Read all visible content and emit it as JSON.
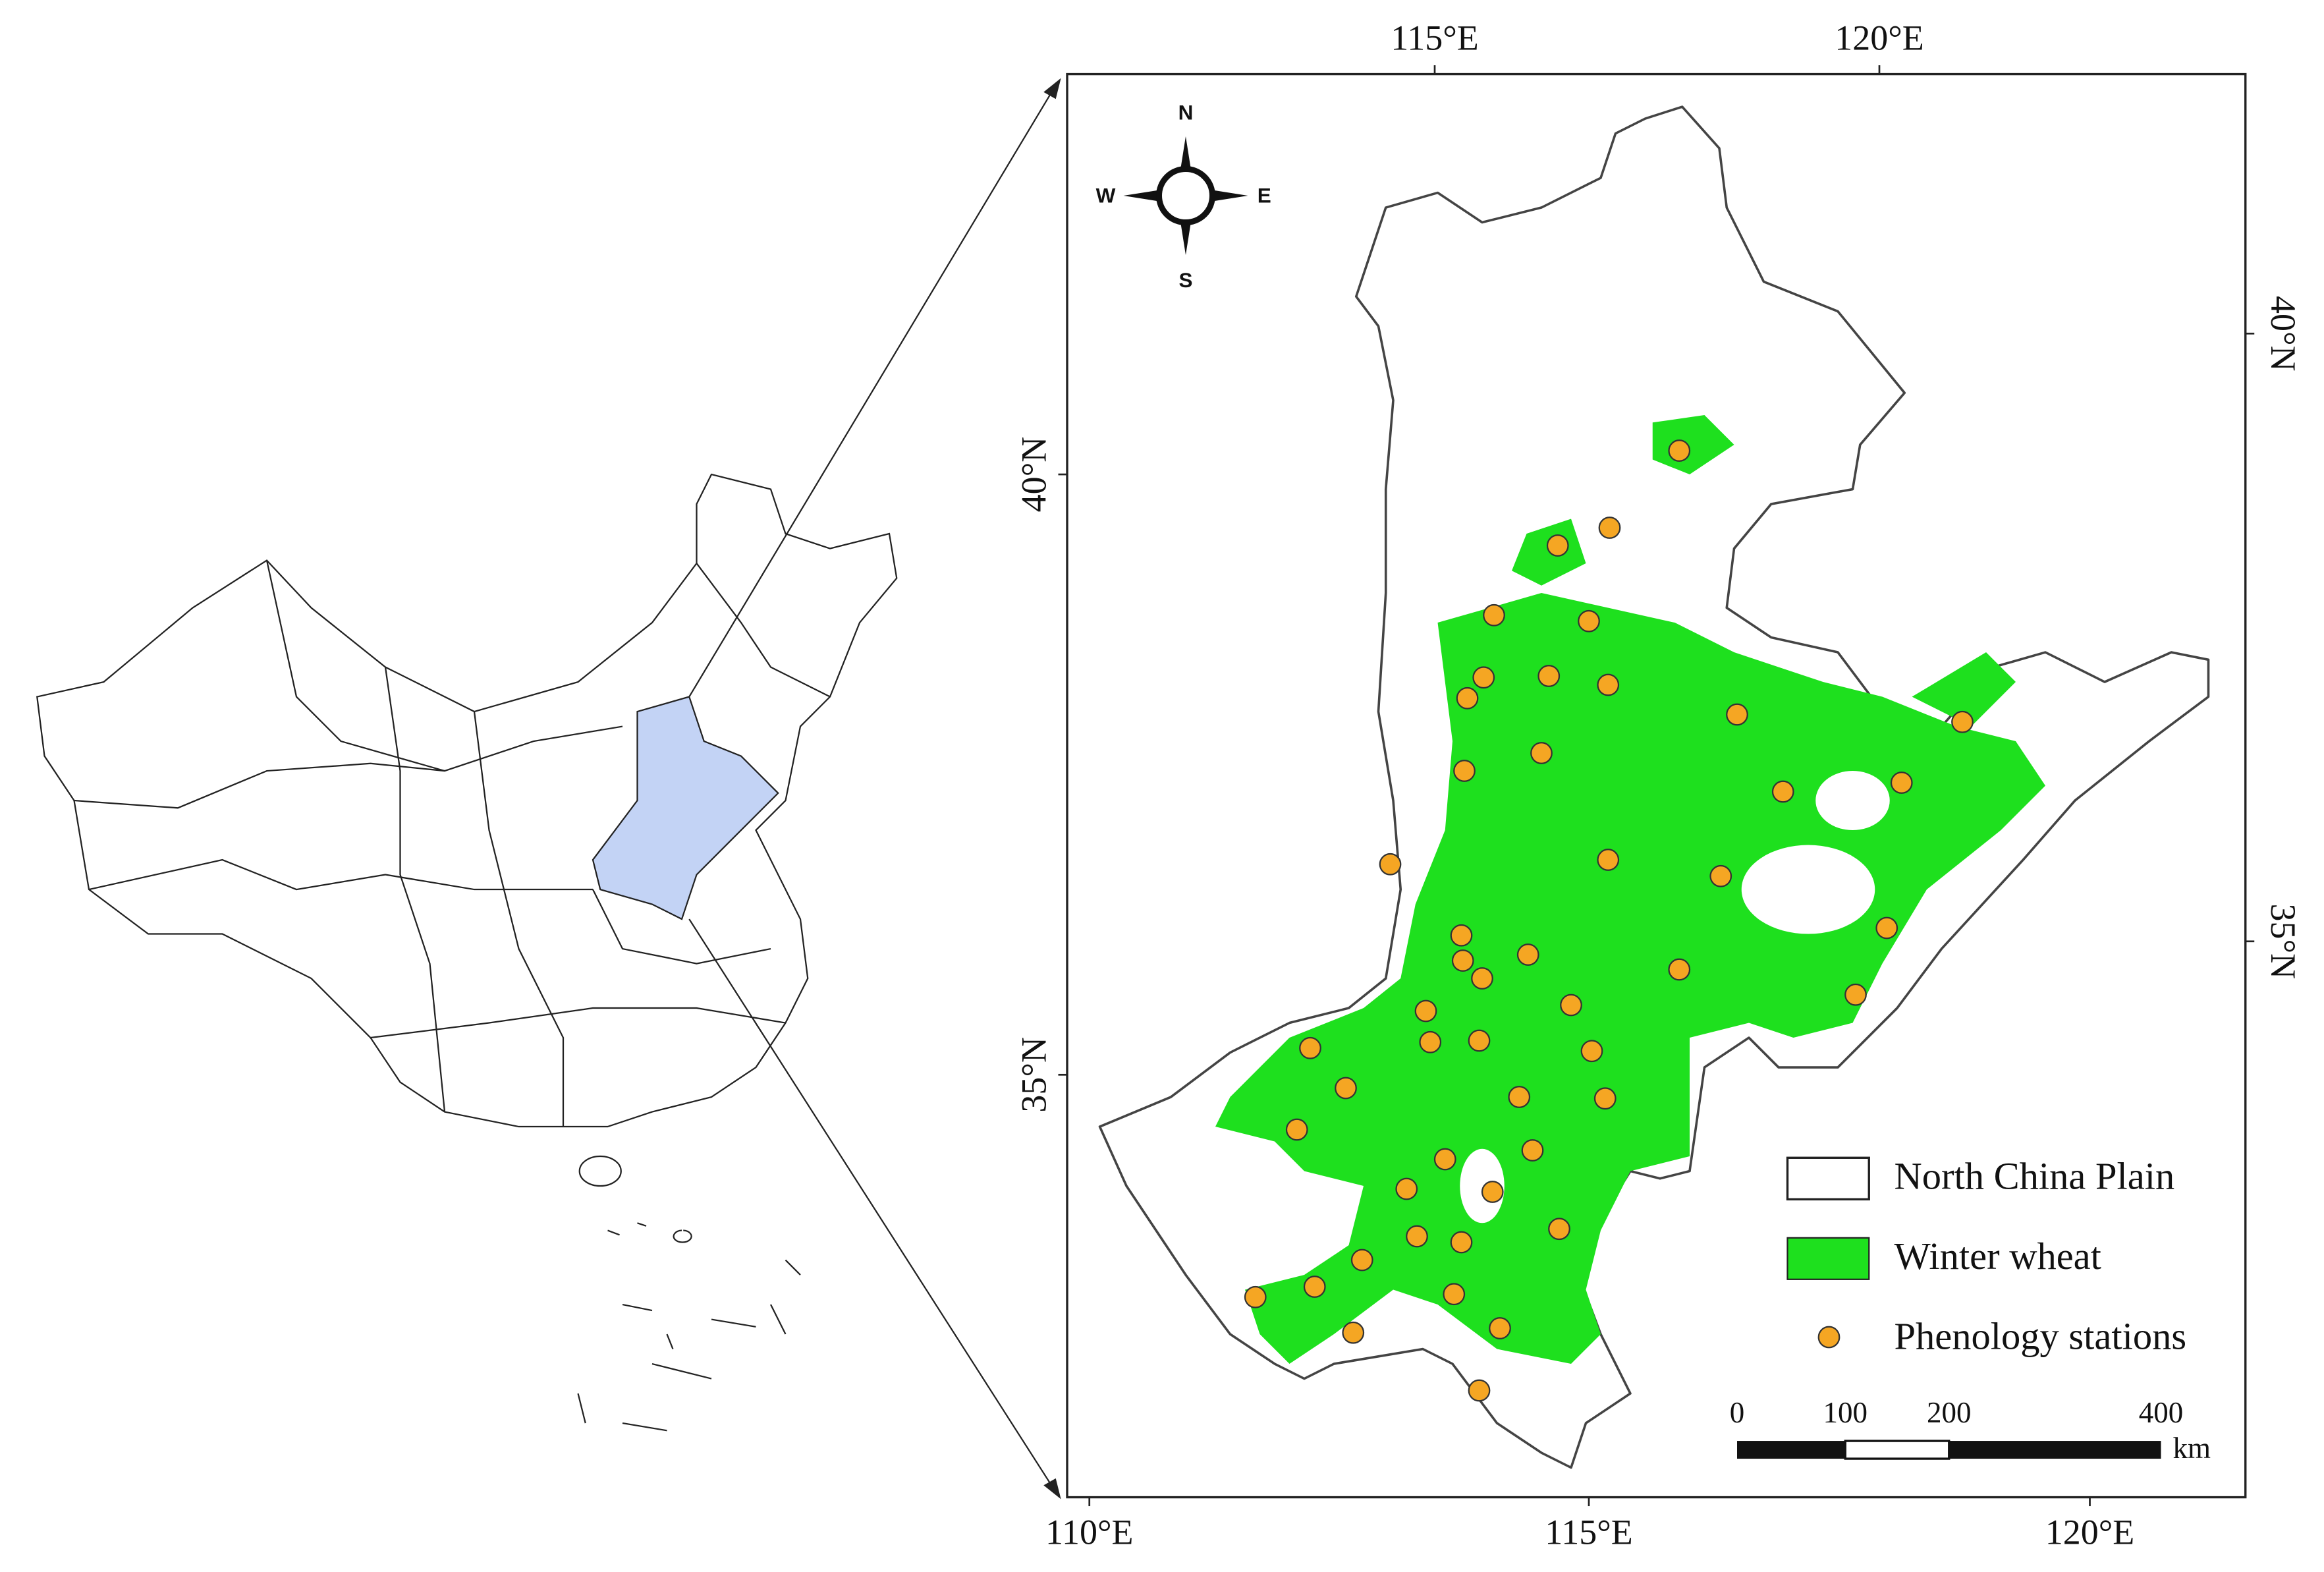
{
  "map": {
    "top_labels": [
      "115°E",
      "120°E"
    ],
    "bottom_labels": [
      "110°E",
      "115°E",
      "120°E"
    ],
    "left_labels": [
      "40°N",
      "35°N"
    ],
    "right_labels": [
      "40°N",
      "35°N"
    ],
    "compass": {
      "n": "N",
      "e": "E",
      "s": "S",
      "w": "W"
    },
    "legend": [
      "North China Plain",
      "Winter wheat",
      "Phenology stations"
    ],
    "scale_bar": {
      "labels": [
        "0",
        "100",
        "200",
        "400"
      ],
      "unit": "km"
    }
  }
}
